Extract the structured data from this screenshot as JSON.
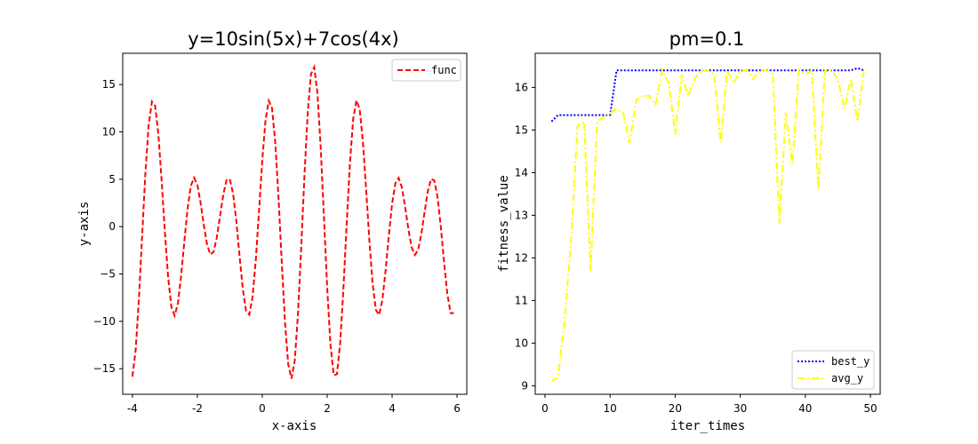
{
  "chart_data": [
    {
      "type": "line",
      "title": "y=10sin(5x)+7cos(4x)",
      "xlabel": "x-axis",
      "ylabel": "y-axis",
      "xlim": [
        -4.3,
        6.3
      ],
      "ylim": [
        -17.7,
        18.3
      ],
      "xticks": [
        -4,
        -2,
        0,
        2,
        4,
        6
      ],
      "xtick_labels": [
        "-4",
        "-2",
        "0",
        "2",
        "4",
        "6"
      ],
      "yticks": [
        -15,
        -10,
        -5,
        0,
        5,
        10,
        15
      ],
      "ytick_labels": [
        "−15",
        "−10",
        "−5",
        "0",
        "5",
        "10",
        "15"
      ],
      "grid": false,
      "legend": "upper right",
      "series": [
        {
          "name": "func",
          "color": "#ff0000",
          "style": "dashed",
          "function": "10*sin(5*x)+7*cos(4*x)",
          "x_range": [
            -4,
            5.9
          ],
          "x_step": 0.1
        }
      ]
    },
    {
      "type": "line",
      "title": "pm=0.1",
      "xlabel": "iter_times",
      "ylabel": "fitness_value",
      "xlim": [
        -1.5,
        51.5
      ],
      "ylim": [
        8.8,
        16.8
      ],
      "xticks": [
        0,
        10,
        20,
        30,
        40,
        50
      ],
      "xtick_labels": [
        "0",
        "10",
        "20",
        "30",
        "40",
        "50"
      ],
      "yticks": [
        9,
        10,
        11,
        12,
        13,
        14,
        15,
        16
      ],
      "ytick_labels": [
        "9",
        "10",
        "11",
        "12",
        "13",
        "14",
        "15",
        "16"
      ],
      "grid": false,
      "legend": "lower right",
      "x": [
        1,
        2,
        3,
        4,
        5,
        6,
        7,
        8,
        9,
        10,
        11,
        12,
        13,
        14,
        15,
        16,
        17,
        18,
        19,
        20,
        21,
        22,
        23,
        24,
        25,
        26,
        27,
        28,
        29,
        30,
        31,
        32,
        33,
        34,
        35,
        36,
        37,
        38,
        39,
        40,
        41,
        42,
        43,
        44,
        45,
        46,
        47,
        48,
        49
      ],
      "series": [
        {
          "name": "best_y",
          "color": "#0000ff",
          "style": "dotted",
          "values": [
            15.2,
            15.35,
            15.35,
            15.35,
            15.35,
            15.35,
            15.35,
            15.35,
            15.35,
            15.35,
            16.4,
            16.4,
            16.4,
            16.4,
            16.4,
            16.4,
            16.4,
            16.4,
            16.4,
            16.4,
            16.4,
            16.4,
            16.4,
            16.4,
            16.4,
            16.4,
            16.4,
            16.4,
            16.4,
            16.4,
            16.4,
            16.4,
            16.4,
            16.4,
            16.4,
            16.4,
            16.4,
            16.4,
            16.4,
            16.4,
            16.4,
            16.4,
            16.4,
            16.4,
            16.4,
            16.4,
            16.4,
            16.45,
            16.4
          ]
        },
        {
          "name": "avg_y",
          "color": "#ffff00",
          "style": "dashdot",
          "values": [
            9.1,
            9.2,
            10.5,
            12.4,
            15.1,
            15.2,
            11.7,
            15.2,
            15.3,
            15.4,
            15.5,
            15.4,
            14.7,
            15.7,
            15.8,
            15.8,
            15.6,
            16.4,
            16.1,
            14.9,
            16.3,
            15.8,
            16.2,
            16.4,
            16.4,
            16.3,
            14.7,
            16.4,
            16.1,
            16.4,
            16.4,
            16.2,
            16.4,
            16.4,
            16.3,
            12.8,
            15.4,
            14.2,
            16.4,
            16.3,
            16.4,
            13.6,
            16.4,
            16.4,
            16.2,
            15.5,
            16.2,
            15.2,
            16.4
          ]
        }
      ]
    }
  ]
}
